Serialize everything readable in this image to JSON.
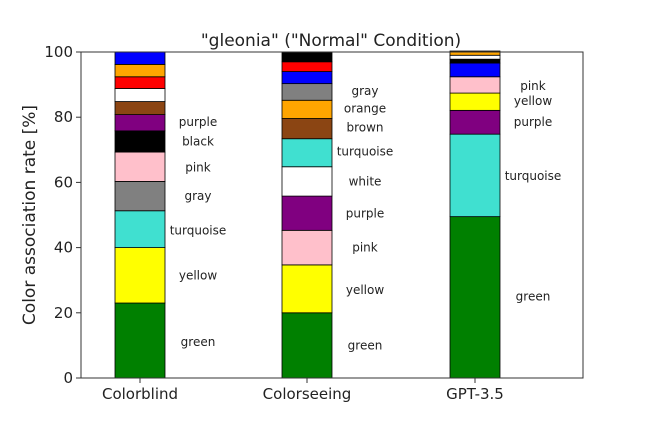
{
  "chart_data": {
    "type": "bar",
    "stacked": true,
    "title": "\"gleonia\" (\"Normal\" Condition)",
    "xlabel": "",
    "ylabel": "Color association rate [%]",
    "ylim": [
      0,
      100
    ],
    "yticks": [
      0,
      20,
      40,
      60,
      80,
      100
    ],
    "grid": false,
    "categories": [
      "Colorblind",
      "Colorseeing",
      "GPT-3.5"
    ],
    "series": [
      {
        "name": "green",
        "color": "#008000",
        "values": [
          23.0,
          20.0,
          49.5
        ]
      },
      {
        "name": "yellow",
        "color": "#ffff00",
        "values": [
          17.0,
          14.7,
          0.0
        ]
      },
      {
        "name": "turquoise",
        "color": "#40e0d0",
        "values": [
          11.3,
          0.0,
          25.3
        ]
      },
      {
        "name": "gray",
        "color": "#808080",
        "values": [
          9.0,
          0.0,
          0.0
        ]
      },
      {
        "name": "pink",
        "color": "#ffc0cb",
        "values": [
          9.0,
          10.6,
          0.0
        ]
      },
      {
        "name": "black",
        "color": "#000000",
        "values": [
          6.5,
          0.0,
          0.0
        ]
      },
      {
        "name": "purple",
        "color": "#800080",
        "values": [
          5.0,
          10.5,
          7.3
        ]
      },
      {
        "name": "brown",
        "color": "#8b4513",
        "values": [
          4.0,
          0.0,
          0.0
        ]
      },
      {
        "name": "white",
        "color": "#ffffff",
        "values": [
          4.0,
          9.0,
          0.0
        ]
      },
      {
        "name": "red",
        "color": "#ff0000",
        "values": [
          3.6,
          0.0,
          0.0
        ]
      },
      {
        "name": "orange",
        "color": "#ffa500",
        "values": [
          3.8,
          0.0,
          0.0
        ]
      },
      {
        "name": "blue",
        "color": "#0000ff",
        "values": [
          3.8,
          0.0,
          0.0
        ]
      },
      {
        "name": "turquoise",
        "color": "#40e0d0",
        "values": [
          0.0,
          8.6,
          0.0
        ]
      },
      {
        "name": "brown",
        "color": "#8b4513",
        "values": [
          0.0,
          6.2,
          0.0
        ]
      },
      {
        "name": "orange",
        "color": "#ffa500",
        "values": [
          0.0,
          5.6,
          0.0
        ]
      },
      {
        "name": "gray",
        "color": "#808080",
        "values": [
          0.0,
          5.1,
          0.0
        ]
      },
      {
        "name": "blue",
        "color": "#0000ff",
        "values": [
          0.0,
          3.7,
          0.0
        ]
      },
      {
        "name": "red",
        "color": "#ff0000",
        "values": [
          0.0,
          3.0,
          0.0
        ]
      },
      {
        "name": "black",
        "color": "#000000",
        "values": [
          0.0,
          3.0,
          0.0
        ]
      },
      {
        "name": "yellow",
        "color": "#ffff00",
        "values": [
          0.0,
          0.0,
          5.3
        ]
      },
      {
        "name": "pink",
        "color": "#ffc0cb",
        "values": [
          0.0,
          0.0,
          5.0
        ]
      },
      {
        "name": "blue",
        "color": "#0000ff",
        "values": [
          0.0,
          0.0,
          4.2
        ]
      },
      {
        "name": "black",
        "color": "#000000",
        "values": [
          0.0,
          0.0,
          1.2
        ]
      },
      {
        "name": "white",
        "color": "#ffffff",
        "values": [
          0.0,
          0.0,
          1.2
        ]
      },
      {
        "name": "orange",
        "color": "#ffa500",
        "values": [
          0.0,
          0.0,
          1.3
        ]
      }
    ],
    "segment_labels": [
      [
        {
          "text": "green",
          "y": 11
        },
        {
          "text": "yellow",
          "y": 31.5
        },
        {
          "text": "turquoise",
          "y": 45.3
        },
        {
          "text": "gray",
          "y": 55.8
        },
        {
          "text": "pink",
          "y": 64.5
        },
        {
          "text": "black",
          "y": 72.5
        },
        {
          "text": "purple",
          "y": 78.5
        }
      ],
      [
        {
          "text": "green",
          "y": 10
        },
        {
          "text": "yellow",
          "y": 27
        },
        {
          "text": "pink",
          "y": 40
        },
        {
          "text": "purple",
          "y": 50.5
        },
        {
          "text": "white",
          "y": 60.3
        },
        {
          "text": "turquoise",
          "y": 69.5
        },
        {
          "text": "brown",
          "y": 76.9
        },
        {
          "text": "orange",
          "y": 82.6
        },
        {
          "text": "gray",
          "y": 88
        }
      ],
      [
        {
          "text": "green",
          "y": 25
        },
        {
          "text": "turquoise",
          "y": 62
        },
        {
          "text": "purple",
          "y": 78.5
        },
        {
          "text": "yellow",
          "y": 85
        },
        {
          "text": "pink",
          "y": 89.5
        }
      ]
    ]
  }
}
